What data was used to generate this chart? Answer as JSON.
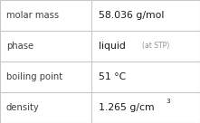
{
  "rows": [
    {
      "label": "molar mass",
      "value": "58.036 g/mol",
      "value2": null,
      "superscript": null
    },
    {
      "label": "phase",
      "value": "liquid",
      "value2": "(at STP)",
      "superscript": null
    },
    {
      "label": "boiling point",
      "value": "51 °C",
      "value2": null,
      "superscript": null
    },
    {
      "label": "density",
      "value": "1.265 g/cm",
      "value2": null,
      "superscript": "3"
    }
  ],
  "background_color": "#ffffff",
  "border_color": "#c8c8c8",
  "label_color": "#404040",
  "value_color": "#1a1a1a",
  "secondary_color": "#909090",
  "col_split": 0.455,
  "figsize": [
    2.21,
    1.36
  ],
  "dpi": 100,
  "label_fontsize": 7.2,
  "value_fontsize": 7.8,
  "secondary_fontsize": 5.5,
  "superscript_fontsize": 5.2
}
